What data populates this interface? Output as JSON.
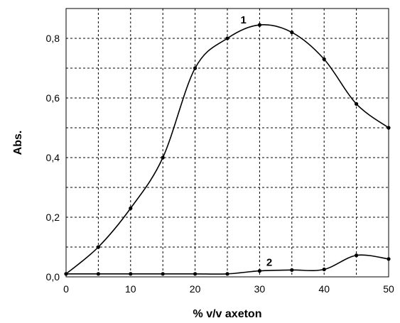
{
  "chart_data": {
    "type": "line",
    "xlabel": "% v/v axeton",
    "ylabel": "Abs.",
    "xlim": [
      0,
      50
    ],
    "ylim": [
      0,
      0.9
    ],
    "grid": true,
    "x_ticks": [
      "0",
      "10",
      "20",
      "30",
      "40",
      "50"
    ],
    "y_ticks": [
      "0,0",
      "0,2",
      "0,4",
      "0,6",
      "0,8"
    ],
    "x": [
      0,
      5,
      10,
      15,
      20,
      25,
      30,
      35,
      40,
      45,
      50
    ],
    "series": [
      {
        "label": "1",
        "values": [
          0.01,
          0.1,
          0.23,
          0.4,
          0.7,
          0.8,
          0.845,
          0.82,
          0.73,
          0.58,
          0.5
        ]
      },
      {
        "label": "2",
        "values": [
          0.01,
          0.01,
          0.01,
          0.01,
          0.01,
          0.01,
          0.02,
          0.023,
          0.025,
          0.072,
          0.06
        ]
      }
    ]
  }
}
